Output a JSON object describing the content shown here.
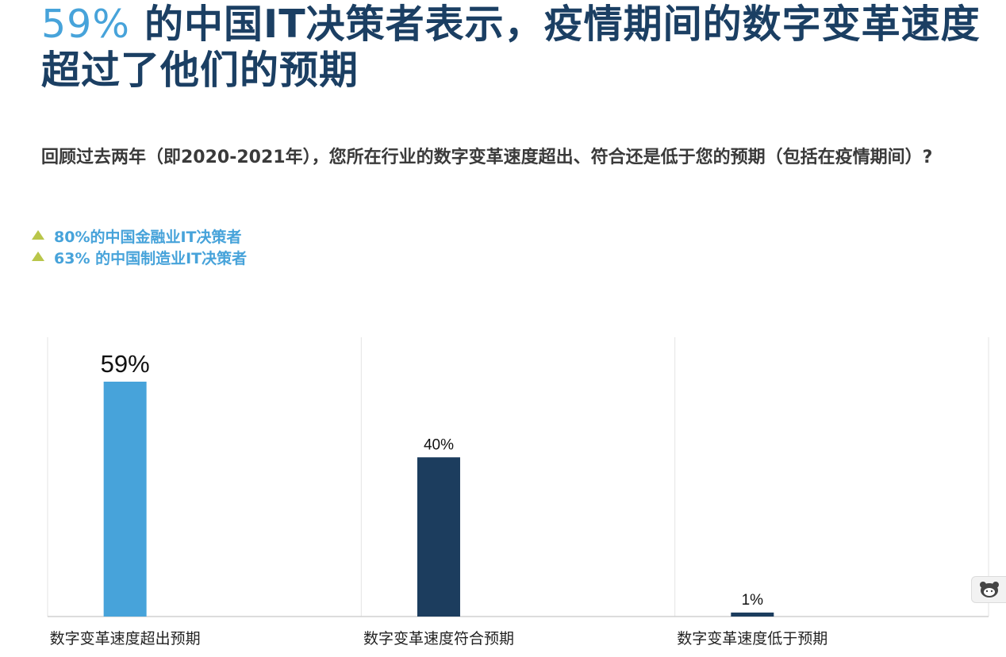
{
  "headline": {
    "highlight": "59%",
    "rest": " 的中国IT决策者表示，疫情期间的数字变革速度超过了他们的预期"
  },
  "question": "回顾过去两年（即2020-2021年），您所在行业的数字变革速度超出、符合还是低于您的预期（包括在疫情期间）?",
  "highlights": [
    "80%的中国金融业IT决策者",
    "63% 的中国制造业IT决策者"
  ],
  "colors": {
    "title_dark": "#1b3f63",
    "accent_blue": "#47a3da",
    "accent_green": "#b9c64a",
    "dark_navy": "#1c3d5e"
  },
  "chart_data": {
    "type": "bar",
    "categories": [
      "数字变革速度超出预期",
      "数字变革速度符合预期",
      "数字变革速度低于预期"
    ],
    "values": [
      59,
      40,
      1
    ],
    "labels": [
      "59%",
      "40%",
      "1%"
    ],
    "colors": [
      "#47a3da",
      "#1c3d5e",
      "#1c3d5e"
    ],
    "ylim": [
      0,
      100
    ],
    "grid": "vertical separators between categories",
    "legend": "none"
  },
  "widget": {
    "icon": "bear-face-icon"
  }
}
